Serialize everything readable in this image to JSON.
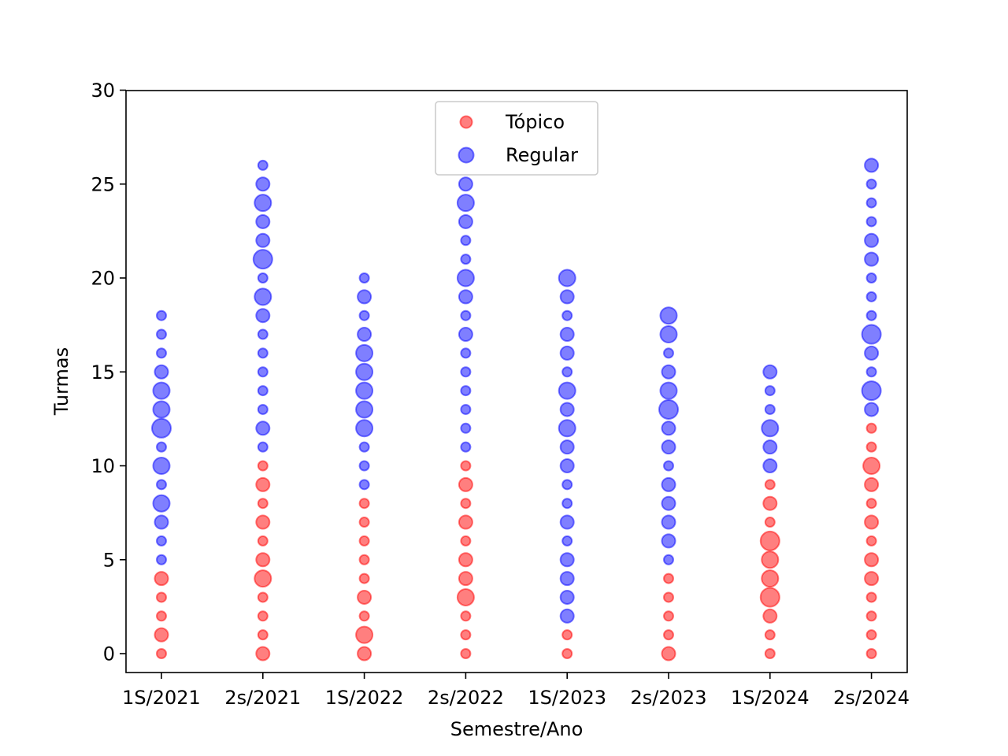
{
  "chart_data": {
    "type": "scatter",
    "title": "",
    "xlabel": "Semestre/Ano",
    "ylabel": "Turmas",
    "ylim": [
      -1,
      30
    ],
    "yticks": [
      0,
      5,
      10,
      15,
      20,
      25,
      30
    ],
    "categories": [
      "1S/2021",
      "2s/2021",
      "1S/2022",
      "2s/2022",
      "1S/2023",
      "2s/2023",
      "1S/2024",
      "2s/2024"
    ],
    "legend_position": "upper center",
    "grid": false,
    "series": [
      {
        "name": "Tópico",
        "color": "#ff0000",
        "alpha": 0.5,
        "points": [
          {
            "x": "1S/2021",
            "y": 0,
            "size": 1
          },
          {
            "x": "1S/2021",
            "y": 1,
            "size": 2
          },
          {
            "x": "1S/2021",
            "y": 2,
            "size": 1
          },
          {
            "x": "1S/2021",
            "y": 3,
            "size": 1
          },
          {
            "x": "1S/2021",
            "y": 4,
            "size": 2
          },
          {
            "x": "2s/2021",
            "y": 0,
            "size": 2
          },
          {
            "x": "2s/2021",
            "y": 1,
            "size": 1
          },
          {
            "x": "2s/2021",
            "y": 2,
            "size": 1
          },
          {
            "x": "2s/2021",
            "y": 3,
            "size": 1
          },
          {
            "x": "2s/2021",
            "y": 4,
            "size": 3
          },
          {
            "x": "2s/2021",
            "y": 5,
            "size": 2
          },
          {
            "x": "2s/2021",
            "y": 6,
            "size": 1
          },
          {
            "x": "2s/2021",
            "y": 7,
            "size": 2
          },
          {
            "x": "2s/2021",
            "y": 8,
            "size": 1
          },
          {
            "x": "2s/2021",
            "y": 9,
            "size": 2
          },
          {
            "x": "2s/2021",
            "y": 10,
            "size": 1
          },
          {
            "x": "1S/2022",
            "y": 0,
            "size": 2
          },
          {
            "x": "1S/2022",
            "y": 1,
            "size": 3
          },
          {
            "x": "1S/2022",
            "y": 2,
            "size": 1
          },
          {
            "x": "1S/2022",
            "y": 3,
            "size": 2
          },
          {
            "x": "1S/2022",
            "y": 4,
            "size": 1
          },
          {
            "x": "1S/2022",
            "y": 5,
            "size": 1
          },
          {
            "x": "1S/2022",
            "y": 6,
            "size": 1
          },
          {
            "x": "1S/2022",
            "y": 7,
            "size": 1
          },
          {
            "x": "1S/2022",
            "y": 8,
            "size": 1
          },
          {
            "x": "2s/2022",
            "y": 0,
            "size": 1
          },
          {
            "x": "2s/2022",
            "y": 1,
            "size": 1
          },
          {
            "x": "2s/2022",
            "y": 2,
            "size": 1
          },
          {
            "x": "2s/2022",
            "y": 3,
            "size": 3
          },
          {
            "x": "2s/2022",
            "y": 4,
            "size": 2
          },
          {
            "x": "2s/2022",
            "y": 5,
            "size": 2
          },
          {
            "x": "2s/2022",
            "y": 6,
            "size": 1
          },
          {
            "x": "2s/2022",
            "y": 7,
            "size": 2
          },
          {
            "x": "2s/2022",
            "y": 8,
            "size": 1
          },
          {
            "x": "2s/2022",
            "y": 9,
            "size": 2
          },
          {
            "x": "2s/2022",
            "y": 10,
            "size": 1
          },
          {
            "x": "1S/2023",
            "y": 0,
            "size": 1
          },
          {
            "x": "1S/2023",
            "y": 1,
            "size": 1
          },
          {
            "x": "2s/2023",
            "y": 0,
            "size": 2
          },
          {
            "x": "2s/2023",
            "y": 1,
            "size": 1
          },
          {
            "x": "2s/2023",
            "y": 2,
            "size": 1
          },
          {
            "x": "2s/2023",
            "y": 3,
            "size": 1
          },
          {
            "x": "2s/2023",
            "y": 4,
            "size": 1
          },
          {
            "x": "1S/2024",
            "y": 0,
            "size": 1
          },
          {
            "x": "1S/2024",
            "y": 1,
            "size": 1
          },
          {
            "x": "1S/2024",
            "y": 2,
            "size": 2
          },
          {
            "x": "1S/2024",
            "y": 3,
            "size": 4
          },
          {
            "x": "1S/2024",
            "y": 4,
            "size": 3
          },
          {
            "x": "1S/2024",
            "y": 5,
            "size": 3
          },
          {
            "x": "1S/2024",
            "y": 6,
            "size": 4
          },
          {
            "x": "1S/2024",
            "y": 7,
            "size": 1
          },
          {
            "x": "1S/2024",
            "y": 8,
            "size": 2
          },
          {
            "x": "1S/2024",
            "y": 9,
            "size": 1
          },
          {
            "x": "2s/2024",
            "y": 0,
            "size": 1
          },
          {
            "x": "2s/2024",
            "y": 1,
            "size": 1
          },
          {
            "x": "2s/2024",
            "y": 2,
            "size": 1
          },
          {
            "x": "2s/2024",
            "y": 3,
            "size": 1
          },
          {
            "x": "2s/2024",
            "y": 4,
            "size": 2
          },
          {
            "x": "2s/2024",
            "y": 5,
            "size": 2
          },
          {
            "x": "2s/2024",
            "y": 6,
            "size": 1
          },
          {
            "x": "2s/2024",
            "y": 7,
            "size": 2
          },
          {
            "x": "2s/2024",
            "y": 8,
            "size": 1
          },
          {
            "x": "2s/2024",
            "y": 9,
            "size": 2
          },
          {
            "x": "2s/2024",
            "y": 10,
            "size": 3
          },
          {
            "x": "2s/2024",
            "y": 11,
            "size": 1
          },
          {
            "x": "2s/2024",
            "y": 12,
            "size": 1
          }
        ]
      },
      {
        "name": "Regular",
        "color": "#0000ff",
        "alpha": 0.5,
        "points": [
          {
            "x": "1S/2021",
            "y": 5,
            "size": 1
          },
          {
            "x": "1S/2021",
            "y": 6,
            "size": 1
          },
          {
            "x": "1S/2021",
            "y": 7,
            "size": 2
          },
          {
            "x": "1S/2021",
            "y": 8,
            "size": 3
          },
          {
            "x": "1S/2021",
            "y": 9,
            "size": 1
          },
          {
            "x": "1S/2021",
            "y": 10,
            "size": 3
          },
          {
            "x": "1S/2021",
            "y": 11,
            "size": 1
          },
          {
            "x": "1S/2021",
            "y": 12,
            "size": 4
          },
          {
            "x": "1S/2021",
            "y": 13,
            "size": 3
          },
          {
            "x": "1S/2021",
            "y": 14,
            "size": 3
          },
          {
            "x": "1S/2021",
            "y": 15,
            "size": 2
          },
          {
            "x": "1S/2021",
            "y": 16,
            "size": 1
          },
          {
            "x": "1S/2021",
            "y": 17,
            "size": 1
          },
          {
            "x": "1S/2021",
            "y": 18,
            "size": 1
          },
          {
            "x": "2s/2021",
            "y": 11,
            "size": 1
          },
          {
            "x": "2s/2021",
            "y": 12,
            "size": 2
          },
          {
            "x": "2s/2021",
            "y": 13,
            "size": 1
          },
          {
            "x": "2s/2021",
            "y": 14,
            "size": 1
          },
          {
            "x": "2s/2021",
            "y": 15,
            "size": 1
          },
          {
            "x": "2s/2021",
            "y": 16,
            "size": 1
          },
          {
            "x": "2s/2021",
            "y": 17,
            "size": 1
          },
          {
            "x": "2s/2021",
            "y": 18,
            "size": 2
          },
          {
            "x": "2s/2021",
            "y": 19,
            "size": 3
          },
          {
            "x": "2s/2021",
            "y": 20,
            "size": 1
          },
          {
            "x": "2s/2021",
            "y": 21,
            "size": 4
          },
          {
            "x": "2s/2021",
            "y": 22,
            "size": 2
          },
          {
            "x": "2s/2021",
            "y": 23,
            "size": 2
          },
          {
            "x": "2s/2021",
            "y": 24,
            "size": 3
          },
          {
            "x": "2s/2021",
            "y": 25,
            "size": 2
          },
          {
            "x": "2s/2021",
            "y": 26,
            "size": 1
          },
          {
            "x": "1S/2022",
            "y": 9,
            "size": 1
          },
          {
            "x": "1S/2022",
            "y": 10,
            "size": 1
          },
          {
            "x": "1S/2022",
            "y": 11,
            "size": 1
          },
          {
            "x": "1S/2022",
            "y": 12,
            "size": 3
          },
          {
            "x": "1S/2022",
            "y": 13,
            "size": 3
          },
          {
            "x": "1S/2022",
            "y": 14,
            "size": 3
          },
          {
            "x": "1S/2022",
            "y": 15,
            "size": 3
          },
          {
            "x": "1S/2022",
            "y": 16,
            "size": 3
          },
          {
            "x": "1S/2022",
            "y": 17,
            "size": 2
          },
          {
            "x": "1S/2022",
            "y": 18,
            "size": 1
          },
          {
            "x": "1S/2022",
            "y": 19,
            "size": 2
          },
          {
            "x": "1S/2022",
            "y": 20,
            "size": 1
          },
          {
            "x": "2s/2022",
            "y": 11,
            "size": 1
          },
          {
            "x": "2s/2022",
            "y": 12,
            "size": 1
          },
          {
            "x": "2s/2022",
            "y": 13,
            "size": 1
          },
          {
            "x": "2s/2022",
            "y": 14,
            "size": 1
          },
          {
            "x": "2s/2022",
            "y": 15,
            "size": 1
          },
          {
            "x": "2s/2022",
            "y": 16,
            "size": 1
          },
          {
            "x": "2s/2022",
            "y": 17,
            "size": 2
          },
          {
            "x": "2s/2022",
            "y": 18,
            "size": 1
          },
          {
            "x": "2s/2022",
            "y": 19,
            "size": 2
          },
          {
            "x": "2s/2022",
            "y": 20,
            "size": 3
          },
          {
            "x": "2s/2022",
            "y": 21,
            "size": 1
          },
          {
            "x": "2s/2022",
            "y": 22,
            "size": 1
          },
          {
            "x": "2s/2022",
            "y": 23,
            "size": 2
          },
          {
            "x": "2s/2022",
            "y": 24,
            "size": 3
          },
          {
            "x": "2s/2022",
            "y": 25,
            "size": 2
          },
          {
            "x": "1S/2023",
            "y": 2,
            "size": 2
          },
          {
            "x": "1S/2023",
            "y": 3,
            "size": 2
          },
          {
            "x": "1S/2023",
            "y": 4,
            "size": 2
          },
          {
            "x": "1S/2023",
            "y": 5,
            "size": 2
          },
          {
            "x": "1S/2023",
            "y": 6,
            "size": 1
          },
          {
            "x": "1S/2023",
            "y": 7,
            "size": 2
          },
          {
            "x": "1S/2023",
            "y": 8,
            "size": 1
          },
          {
            "x": "1S/2023",
            "y": 9,
            "size": 1
          },
          {
            "x": "1S/2023",
            "y": 10,
            "size": 2
          },
          {
            "x": "1S/2023",
            "y": 11,
            "size": 2
          },
          {
            "x": "1S/2023",
            "y": 12,
            "size": 3
          },
          {
            "x": "1S/2023",
            "y": 13,
            "size": 2
          },
          {
            "x": "1S/2023",
            "y": 14,
            "size": 3
          },
          {
            "x": "1S/2023",
            "y": 15,
            "size": 1
          },
          {
            "x": "1S/2023",
            "y": 16,
            "size": 2
          },
          {
            "x": "1S/2023",
            "y": 17,
            "size": 2
          },
          {
            "x": "1S/2023",
            "y": 18,
            "size": 1
          },
          {
            "x": "1S/2023",
            "y": 19,
            "size": 2
          },
          {
            "x": "1S/2023",
            "y": 20,
            "size": 3
          },
          {
            "x": "2s/2023",
            "y": 5,
            "size": 1
          },
          {
            "x": "2s/2023",
            "y": 6,
            "size": 2
          },
          {
            "x": "2s/2023",
            "y": 7,
            "size": 2
          },
          {
            "x": "2s/2023",
            "y": 8,
            "size": 2
          },
          {
            "x": "2s/2023",
            "y": 9,
            "size": 2
          },
          {
            "x": "2s/2023",
            "y": 10,
            "size": 1
          },
          {
            "x": "2s/2023",
            "y": 11,
            "size": 2
          },
          {
            "x": "2s/2023",
            "y": 12,
            "size": 2
          },
          {
            "x": "2s/2023",
            "y": 13,
            "size": 4
          },
          {
            "x": "2s/2023",
            "y": 14,
            "size": 3
          },
          {
            "x": "2s/2023",
            "y": 15,
            "size": 2
          },
          {
            "x": "2s/2023",
            "y": 16,
            "size": 1
          },
          {
            "x": "2s/2023",
            "y": 17,
            "size": 3
          },
          {
            "x": "2s/2023",
            "y": 18,
            "size": 3
          },
          {
            "x": "1S/2024",
            "y": 10,
            "size": 2
          },
          {
            "x": "1S/2024",
            "y": 11,
            "size": 2
          },
          {
            "x": "1S/2024",
            "y": 12,
            "size": 3
          },
          {
            "x": "1S/2024",
            "y": 13,
            "size": 1
          },
          {
            "x": "1S/2024",
            "y": 14,
            "size": 1
          },
          {
            "x": "1S/2024",
            "y": 15,
            "size": 2
          },
          {
            "x": "2s/2024",
            "y": 13,
            "size": 2
          },
          {
            "x": "2s/2024",
            "y": 14,
            "size": 4
          },
          {
            "x": "2s/2024",
            "y": 15,
            "size": 1
          },
          {
            "x": "2s/2024",
            "y": 16,
            "size": 2
          },
          {
            "x": "2s/2024",
            "y": 17,
            "size": 4
          },
          {
            "x": "2s/2024",
            "y": 18,
            "size": 1
          },
          {
            "x": "2s/2024",
            "y": 19,
            "size": 1
          },
          {
            "x": "2s/2024",
            "y": 20,
            "size": 1
          },
          {
            "x": "2s/2024",
            "y": 21,
            "size": 2
          },
          {
            "x": "2s/2024",
            "y": 22,
            "size": 2
          },
          {
            "x": "2s/2024",
            "y": 23,
            "size": 1
          },
          {
            "x": "2s/2024",
            "y": 24,
            "size": 1
          },
          {
            "x": "2s/2024",
            "y": 25,
            "size": 1
          },
          {
            "x": "2s/2024",
            "y": 26,
            "size": 2
          }
        ]
      }
    ]
  }
}
